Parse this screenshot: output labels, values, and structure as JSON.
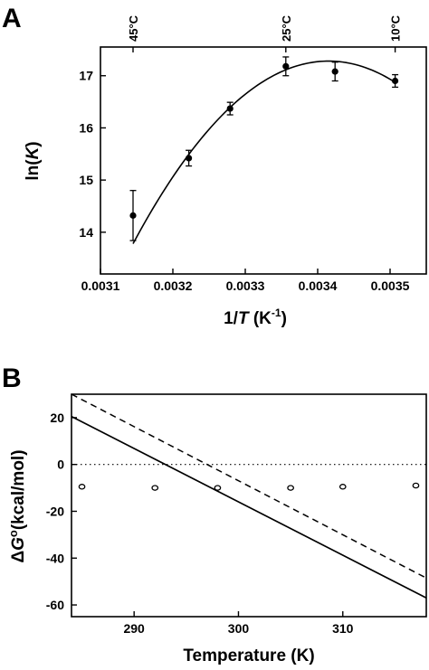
{
  "chart_data": [
    {
      "panel": "A",
      "type": "scatter",
      "xlabel": "1/T (K⁻¹)",
      "ylabel": "ln(K)",
      "xlim": [
        0.0031,
        0.00355
      ],
      "ylim": [
        13.2,
        17.55
      ],
      "xticks": [
        "0.0031",
        "0.0032",
        "0.0033",
        "0.0034",
        "0.0035"
      ],
      "yticks": [
        "14",
        "15",
        "16",
        "17"
      ],
      "top_tick_labels": [
        {
          "label": "45°C",
          "x": 0.003145
        },
        {
          "label": "25°C",
          "x": 0.003356
        },
        {
          "label": "10°C",
          "x": 0.003507
        }
      ],
      "points": [
        {
          "x": 0.003145,
          "y": 14.32,
          "err": 0.48
        },
        {
          "x": 0.003222,
          "y": 15.42,
          "err": 0.15
        },
        {
          "x": 0.003279,
          "y": 16.37,
          "err": 0.12
        },
        {
          "x": 0.003356,
          "y": 17.18,
          "err": 0.18
        },
        {
          "x": 0.003424,
          "y": 17.08,
          "err": 0.18
        },
        {
          "x": 0.003507,
          "y": 16.9,
          "err": 0.12
        }
      ],
      "fit_curve": {
        "type": "quadratic",
        "vertex_x": 0.003415,
        "vertex_y": 17.28,
        "x_range": [
          0.003145,
          0.003507
        ],
        "at_x_start": 13.78
      }
    },
    {
      "panel": "B",
      "type": "line",
      "xlabel": "Temperature (K)",
      "ylabel": "ΔG°(kcal/mol)",
      "xlim": [
        284,
        318
      ],
      "ylim": [
        -65,
        30
      ],
      "xticks": [
        "290",
        "300",
        "310"
      ],
      "yticks": [
        "20",
        "0",
        "-20",
        "-40",
        "-60"
      ],
      "series": [
        {
          "style": "solid",
          "x": [
            284,
            318
          ],
          "y": [
            20.5,
            -57
          ]
        },
        {
          "style": "dashed",
          "x": [
            284,
            318
          ],
          "y": [
            30,
            -48.5
          ]
        },
        {
          "style": "dotted",
          "x": [
            284,
            318
          ],
          "y": [
            0,
            0
          ]
        },
        {
          "style": "open-circles",
          "x": [
            285,
            292,
            298,
            305,
            310,
            317
          ],
          "y": [
            -9.5,
            -10,
            -10,
            -10,
            -9.5,
            -9
          ]
        }
      ]
    }
  ],
  "labels": {
    "panel_a": "A",
    "panel_b": "B",
    "a_ylabel_pre": "ln(",
    "a_ylabel_var": "K",
    "a_ylabel_post": ")",
    "a_xlabel_pre": "1/",
    "a_xlabel_var": "T",
    "a_xlabel_unit": " (K",
    "a_xlabel_exp": "-1",
    "a_xlabel_close": ")",
    "b_ylabel_delta": "Δ",
    "b_ylabel_var": "G",
    "b_ylabel_sup": "o",
    "b_ylabel_unit": "(kcal/mol)",
    "b_xlabel": "Temperature (K)"
  }
}
